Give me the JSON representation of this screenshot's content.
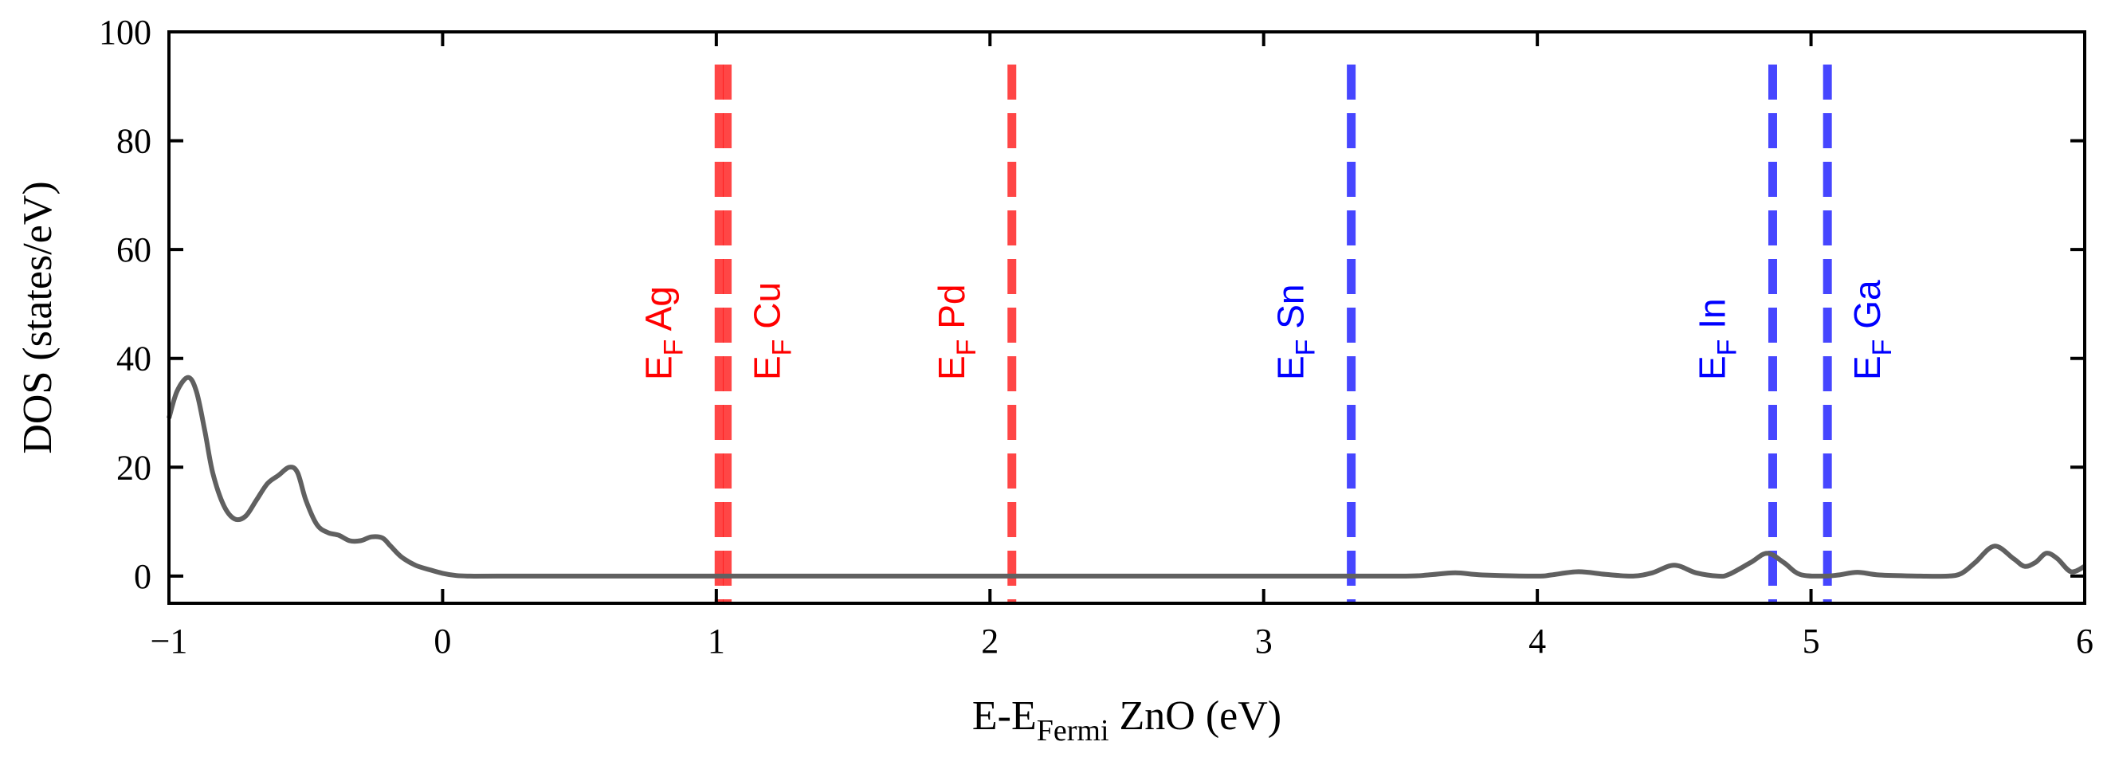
{
  "chart_data": {
    "type": "line",
    "xlim": [
      -1,
      6
    ],
    "ylim": [
      -5,
      100
    ],
    "xticks": [
      -1,
      0,
      1,
      2,
      3,
      4,
      5,
      6
    ],
    "yticks": [
      0,
      20,
      40,
      60,
      80,
      100
    ],
    "xtick_labels": [
      "−1",
      "0",
      "1",
      "2",
      "3",
      "4",
      "5",
      "6"
    ],
    "ytick_labels": [
      "0",
      "20",
      "40",
      "60",
      "80",
      "100"
    ],
    "xlabel": {
      "main": "E-E",
      "sub": "Fermi",
      "suffix": " ZnO (eV)"
    },
    "ylabel": "DOS (states/eV)",
    "grid": false,
    "series": [
      {
        "color": "#606060",
        "x": [
          -1.0,
          -0.97,
          -0.93,
          -0.9,
          -0.87,
          -0.84,
          -0.8,
          -0.76,
          -0.72,
          -0.68,
          -0.64,
          -0.6,
          -0.56,
          -0.53,
          -0.5,
          -0.46,
          -0.42,
          -0.38,
          -0.34,
          -0.3,
          -0.26,
          -0.22,
          -0.19,
          -0.15,
          -0.1,
          -0.05,
          0.0,
          0.05,
          0.1,
          0.2,
          0.5,
          1.0,
          2.0,
          3.0,
          3.5,
          3.6,
          3.7,
          3.8,
          4.0,
          4.05,
          4.15,
          4.25,
          4.35,
          4.42,
          4.5,
          4.58,
          4.66,
          4.7,
          4.78,
          4.84,
          4.9,
          4.96,
          5.05,
          5.1,
          5.17,
          5.25,
          5.4,
          5.5,
          5.55,
          5.6,
          5.67,
          5.74,
          5.78,
          5.82,
          5.86,
          5.9,
          5.95,
          6.0
        ],
        "y": [
          29,
          34,
          36.5,
          34,
          27,
          19,
          13,
          10.5,
          11,
          14,
          17,
          18.5,
          20,
          19,
          14,
          9.5,
          8,
          7.5,
          6.5,
          6.5,
          7.2,
          7,
          5.5,
          3.5,
          2,
          1.2,
          0.5,
          0.1,
          0,
          0,
          0,
          0,
          0,
          0,
          0,
          0.2,
          0.6,
          0.2,
          0,
          0.2,
          0.8,
          0.3,
          0,
          0.6,
          2,
          0.6,
          0,
          0.3,
          2.5,
          4.2,
          2.5,
          0.3,
          0,
          0.2,
          0.7,
          0.2,
          0,
          0,
          0.5,
          2.5,
          5.5,
          3.2,
          1.8,
          2.5,
          4.2,
          3.2,
          0.8,
          1.8
        ]
      }
    ],
    "vlines": [
      {
        "x": 1.01,
        "color": "#ff0000",
        "label_main": "E",
        "label_sub": "F",
        "label_suffix": " Ag",
        "label_side": "left"
      },
      {
        "x": 1.04,
        "color": "#ff0000",
        "label_main": "E",
        "label_sub": "F",
        "label_suffix": " Cu",
        "label_side": "right"
      },
      {
        "x": 2.08,
        "color": "#ff0000",
        "label_main": "E",
        "label_sub": "F",
        "label_suffix": " Pd",
        "label_side": "left"
      },
      {
        "x": 3.32,
        "color": "#0000ff",
        "label_main": "E",
        "label_sub": "F",
        "label_suffix": " Sn",
        "label_side": "left"
      },
      {
        "x": 4.86,
        "color": "#0000ff",
        "label_main": "E",
        "label_sub": "F",
        "label_suffix": " In",
        "label_side": "left"
      },
      {
        "x": 5.06,
        "color": "#0000ff",
        "label_main": "E",
        "label_sub": "F",
        "label_suffix": " Ga",
        "label_side": "right"
      }
    ]
  }
}
